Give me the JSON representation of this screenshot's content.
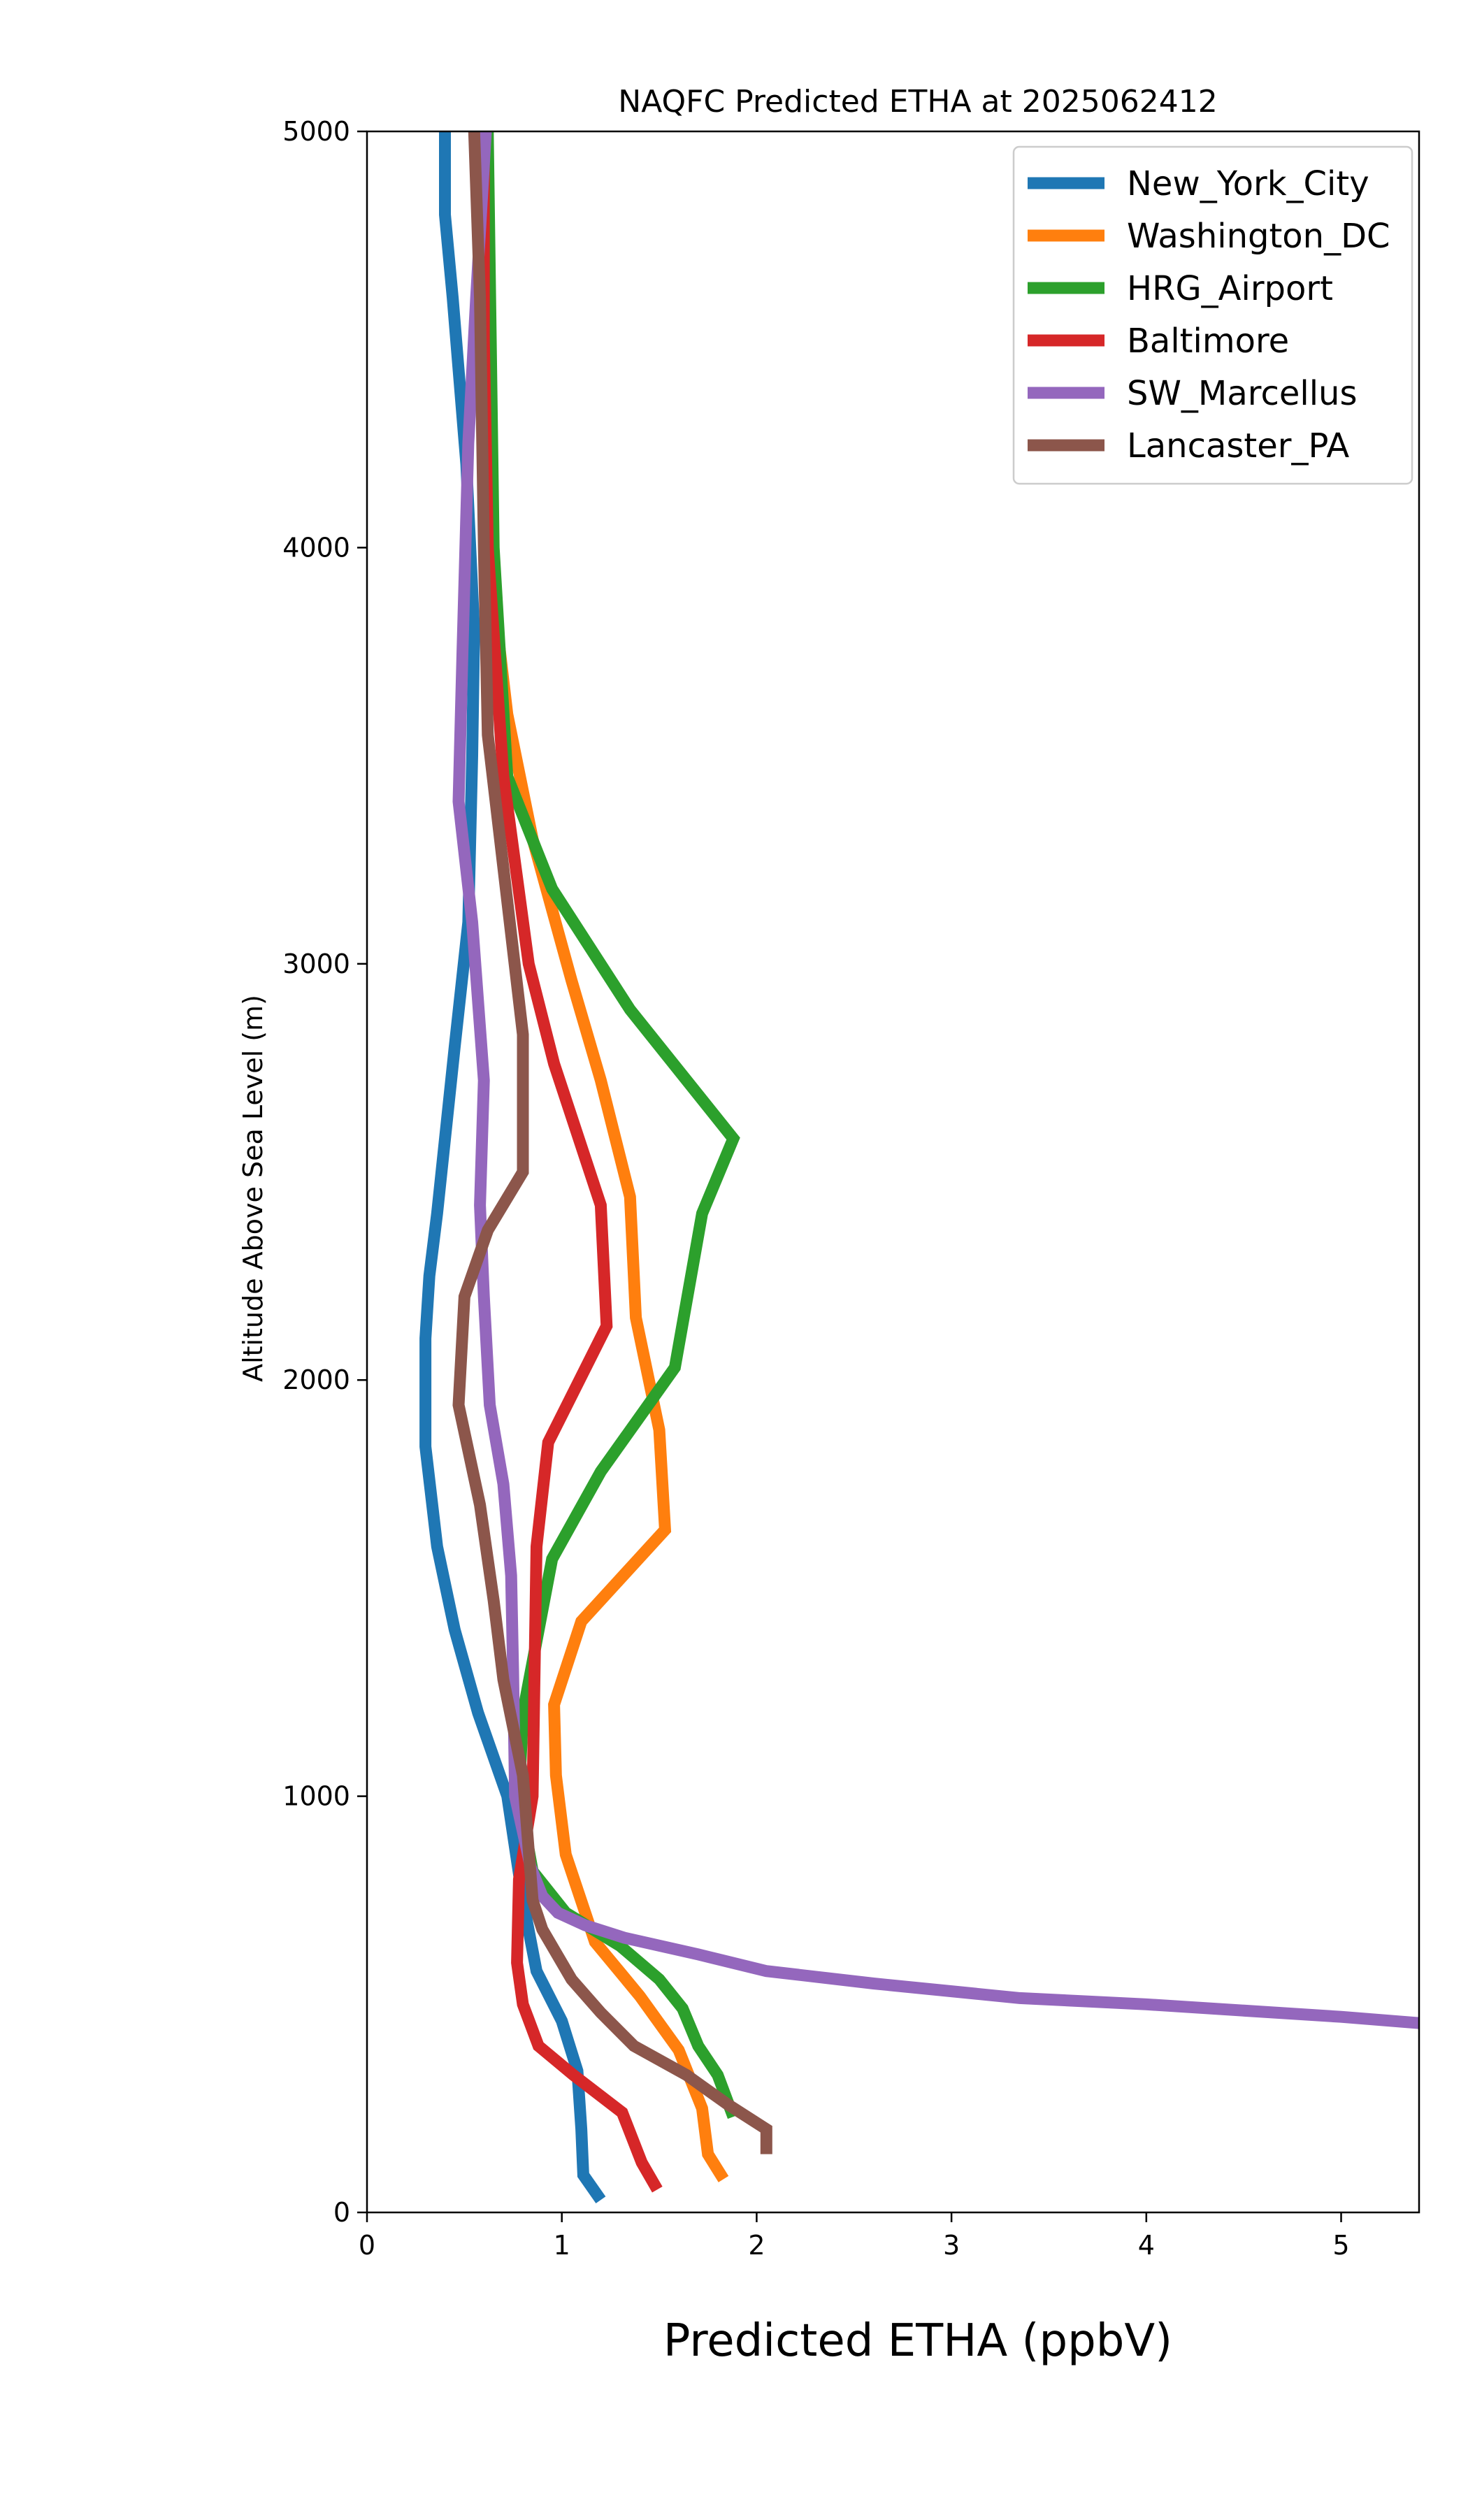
{
  "chart_data": {
    "type": "line",
    "title": "NAQFC Predicted ETHA at 2025062412",
    "xlabel": "Predicted ETHA (ppbV)",
    "ylabel": "Altitude Above Sea Level (m)",
    "xlim": [
      0,
      5.4
    ],
    "ylim": [
      0,
      5000
    ],
    "xticks": [
      0,
      1,
      2,
      3,
      4,
      5
    ],
    "yticks": [
      0,
      1000,
      2000,
      3000,
      4000,
      5000
    ],
    "grid": false,
    "legend_position": "top-right",
    "series": [
      {
        "name": "New_York_City",
        "color": "#1f77b4",
        "points": [
          [
            1.2,
            30
          ],
          [
            1.11,
            90
          ],
          [
            1.1,
            200
          ],
          [
            1.08,
            340
          ],
          [
            1.0,
            460
          ],
          [
            0.87,
            580
          ],
          [
            0.8,
            750
          ],
          [
            0.72,
            1000
          ],
          [
            0.57,
            1200
          ],
          [
            0.45,
            1400
          ],
          [
            0.36,
            1600
          ],
          [
            0.3,
            1840
          ],
          [
            0.3,
            2100
          ],
          [
            0.32,
            2250
          ],
          [
            0.36,
            2400
          ],
          [
            0.45,
            2800
          ],
          [
            0.52,
            3100
          ],
          [
            0.54,
            3500
          ],
          [
            0.55,
            3800
          ],
          [
            0.51,
            4200
          ],
          [
            0.44,
            4600
          ],
          [
            0.4,
            4800
          ],
          [
            0.4,
            5000
          ]
        ]
      },
      {
        "name": "Washington_DC",
        "color": "#ff7f0e",
        "points": [
          [
            1.83,
            80
          ],
          [
            1.75,
            140
          ],
          [
            1.72,
            250
          ],
          [
            1.6,
            390
          ],
          [
            1.4,
            520
          ],
          [
            1.17,
            650
          ],
          [
            1.02,
            860
          ],
          [
            0.97,
            1050
          ],
          [
            0.96,
            1220
          ],
          [
            1.1,
            1420
          ],
          [
            1.53,
            1640
          ],
          [
            1.5,
            1880
          ],
          [
            1.38,
            2150
          ],
          [
            1.35,
            2440
          ],
          [
            1.2,
            2720
          ],
          [
            1.05,
            2960
          ],
          [
            0.85,
            3300
          ],
          [
            0.72,
            3600
          ],
          [
            0.62,
            4000
          ],
          [
            0.6,
            4500
          ],
          [
            0.6,
            5000
          ]
        ]
      },
      {
        "name": "HRG_Airport",
        "color": "#2ca02c",
        "points": [
          [
            1.88,
            230
          ],
          [
            1.8,
            330
          ],
          [
            1.7,
            400
          ],
          [
            1.62,
            490
          ],
          [
            1.5,
            560
          ],
          [
            1.3,
            640
          ],
          [
            1.02,
            720
          ],
          [
            0.85,
            820
          ],
          [
            0.78,
            1000
          ],
          [
            0.8,
            1200
          ],
          [
            0.95,
            1570
          ],
          [
            1.2,
            1780
          ],
          [
            1.58,
            2030
          ],
          [
            1.72,
            2400
          ],
          [
            1.88,
            2580
          ],
          [
            1.35,
            2890
          ],
          [
            0.95,
            3180
          ],
          [
            0.72,
            3450
          ],
          [
            0.65,
            4000
          ],
          [
            0.62,
            5000
          ]
        ]
      },
      {
        "name": "Baltimore",
        "color": "#d62728",
        "points": [
          [
            1.49,
            55
          ],
          [
            1.41,
            120
          ],
          [
            1.31,
            240
          ],
          [
            1.06,
            330
          ],
          [
            0.88,
            400
          ],
          [
            0.8,
            500
          ],
          [
            0.77,
            600
          ],
          [
            0.78,
            800
          ],
          [
            0.85,
            1000
          ],
          [
            0.87,
            1600
          ],
          [
            0.93,
            1850
          ],
          [
            1.23,
            2130
          ],
          [
            1.2,
            2420
          ],
          [
            0.96,
            2760
          ],
          [
            0.83,
            3000
          ],
          [
            0.7,
            3450
          ],
          [
            0.62,
            4000
          ],
          [
            0.6,
            4500
          ],
          [
            0.6,
            5000
          ]
        ]
      },
      {
        "name": "SW_Marcellus",
        "color": "#9467bd",
        "points": [
          [
            5.4,
            455
          ],
          [
            5.0,
            470
          ],
          [
            4.0,
            500
          ],
          [
            3.35,
            515
          ],
          [
            2.6,
            550
          ],
          [
            2.05,
            580
          ],
          [
            1.7,
            620
          ],
          [
            1.32,
            660
          ],
          [
            1.12,
            690
          ],
          [
            0.98,
            720
          ],
          [
            0.9,
            760
          ],
          [
            0.84,
            830
          ],
          [
            0.76,
            1000
          ],
          [
            0.75,
            1300
          ],
          [
            0.74,
            1530
          ],
          [
            0.7,
            1750
          ],
          [
            0.63,
            1940
          ],
          [
            0.6,
            2200
          ],
          [
            0.58,
            2420
          ],
          [
            0.6,
            2720
          ],
          [
            0.54,
            3100
          ],
          [
            0.47,
            3390
          ],
          [
            0.49,
            3750
          ],
          [
            0.52,
            4250
          ],
          [
            0.56,
            4600
          ],
          [
            0.61,
            5000
          ]
        ]
      },
      {
        "name": "Lancaster_PA",
        "color": "#8c564b",
        "points": [
          [
            2.05,
            140
          ],
          [
            2.05,
            200
          ],
          [
            1.85,
            260
          ],
          [
            1.64,
            330
          ],
          [
            1.37,
            400
          ],
          [
            1.2,
            480
          ],
          [
            1.05,
            560
          ],
          [
            0.9,
            680
          ],
          [
            0.85,
            750
          ],
          [
            0.83,
            870
          ],
          [
            0.8,
            1050
          ],
          [
            0.7,
            1280
          ],
          [
            0.65,
            1470
          ],
          [
            0.58,
            1700
          ],
          [
            0.47,
            1940
          ],
          [
            0.5,
            2200
          ],
          [
            0.62,
            2360
          ],
          [
            0.8,
            2500
          ],
          [
            0.8,
            2830
          ],
          [
            0.72,
            3150
          ],
          [
            0.62,
            3550
          ],
          [
            0.6,
            4000
          ],
          [
            0.58,
            4600
          ],
          [
            0.55,
            5000
          ]
        ]
      }
    ]
  }
}
